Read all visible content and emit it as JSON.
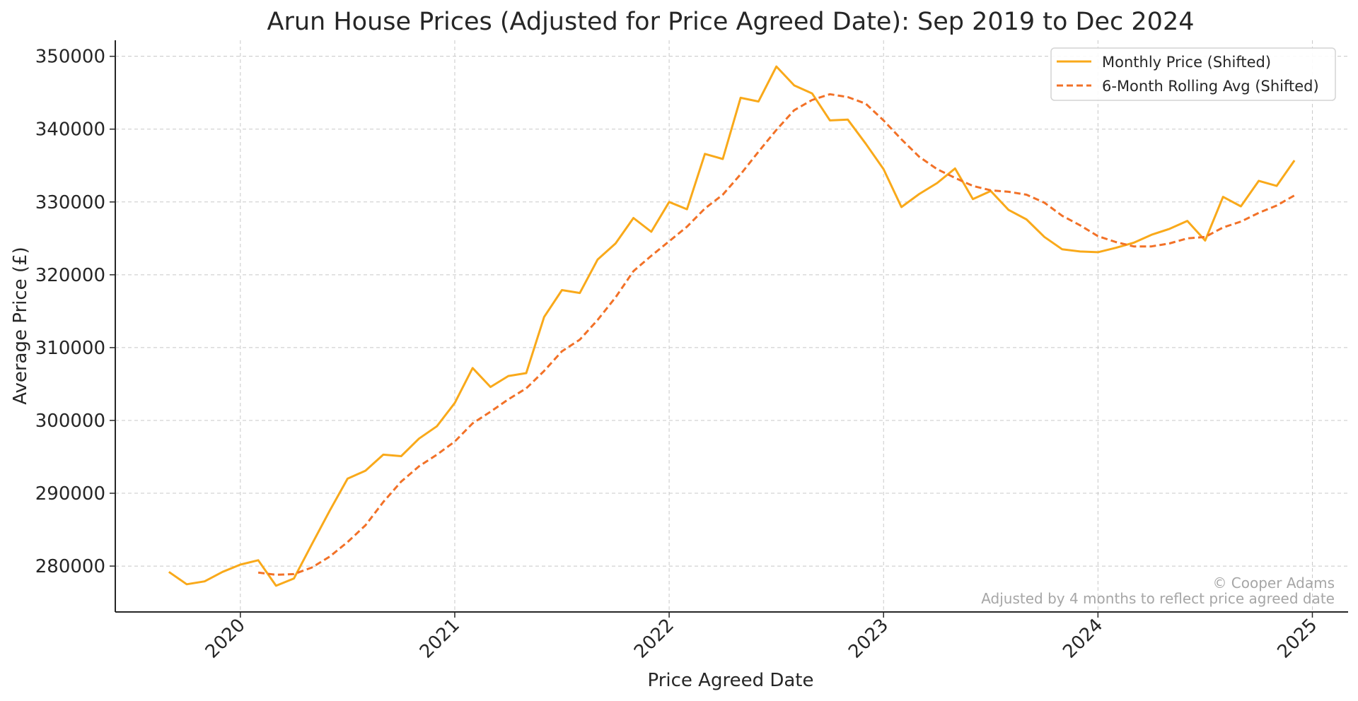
{
  "chart_data": {
    "type": "line",
    "title": "Arun House Prices (Adjusted for Price Agreed Date): Sep 2019 to Dec 2024",
    "xlabel": "Price Agreed Date",
    "ylabel": "Average Price (£)",
    "x_ticks": [
      "2020",
      "2021",
      "2022",
      "2023",
      "2024",
      "2025"
    ],
    "y_ticks": [
      280000,
      290000,
      300000,
      310000,
      320000,
      330000,
      340000,
      350000
    ],
    "xlim": [
      "2019-06",
      "2025-03"
    ],
    "ylim": [
      273700,
      352200
    ],
    "grid": true,
    "legend_position": "top-right",
    "x": [
      "2019-09",
      "2019-10",
      "2019-11",
      "2019-12",
      "2020-01",
      "2020-02",
      "2020-03",
      "2020-04",
      "2020-05",
      "2020-06",
      "2020-07",
      "2020-08",
      "2020-09",
      "2020-10",
      "2020-11",
      "2020-12",
      "2021-01",
      "2021-02",
      "2021-03",
      "2021-04",
      "2021-05",
      "2021-06",
      "2021-07",
      "2021-08",
      "2021-09",
      "2021-10",
      "2021-11",
      "2021-12",
      "2022-01",
      "2022-02",
      "2022-03",
      "2022-04",
      "2022-05",
      "2022-06",
      "2022-07",
      "2022-08",
      "2022-09",
      "2022-10",
      "2022-11",
      "2022-12",
      "2023-01",
      "2023-02",
      "2023-03",
      "2023-04",
      "2023-05",
      "2023-06",
      "2023-07",
      "2023-08",
      "2023-09",
      "2023-10",
      "2023-11",
      "2023-12",
      "2024-01",
      "2024-02",
      "2024-03",
      "2024-04",
      "2024-05",
      "2024-06",
      "2024-07",
      "2024-08",
      "2024-09",
      "2024-10",
      "2024-11",
      "2024-12"
    ],
    "series": [
      {
        "name": "Monthly Price (Shifted)",
        "color": "#F9A91A",
        "style": "solid",
        "values": [
          279200,
          277500,
          277900,
          279200,
          280200,
          280800,
          277300,
          278300,
          283000,
          287600,
          292000,
          293100,
          295300,
          295100,
          297500,
          299200,
          302400,
          307200,
          304600,
          306100,
          306500,
          314200,
          317900,
          317500,
          322100,
          324300,
          327800,
          325900,
          330000,
          329000,
          336600,
          335900,
          344300,
          343800,
          348600,
          346000,
          344900,
          341200,
          341300,
          338000,
          334500,
          329300,
          331100,
          332600,
          334600,
          330400,
          331500,
          328900,
          327600,
          325200,
          323500,
          323200,
          323100,
          323700,
          324400,
          325500,
          326300,
          327400,
          324700,
          330700,
          329400,
          332900,
          332200,
          335700
        ]
      },
      {
        "name": "6-Month Rolling Avg (Shifted)",
        "color": "#F27127",
        "style": "dashed",
        "values": [
          null,
          null,
          null,
          null,
          null,
          279100,
          278800,
          278900,
          279800,
          281300,
          283300,
          285600,
          288800,
          291600,
          293700,
          295300,
          297100,
          299600,
          301200,
          302900,
          304400,
          306800,
          309500,
          311100,
          313800,
          316900,
          320500,
          322600,
          324600,
          326600,
          329100,
          331000,
          333800,
          336900,
          339900,
          342600,
          344000,
          344800,
          344400,
          343500,
          341200,
          338600,
          336200,
          334500,
          333300,
          332200,
          331600,
          331400,
          331000,
          329900,
          328100,
          326800,
          325300,
          324500,
          323900,
          323900,
          324300,
          325000,
          325200,
          326500,
          327300,
          328500,
          329500,
          330900
        ]
      }
    ],
    "annotations": [
      "© Cooper Adams",
      "Adjusted by 4 months to reflect price agreed date"
    ]
  }
}
